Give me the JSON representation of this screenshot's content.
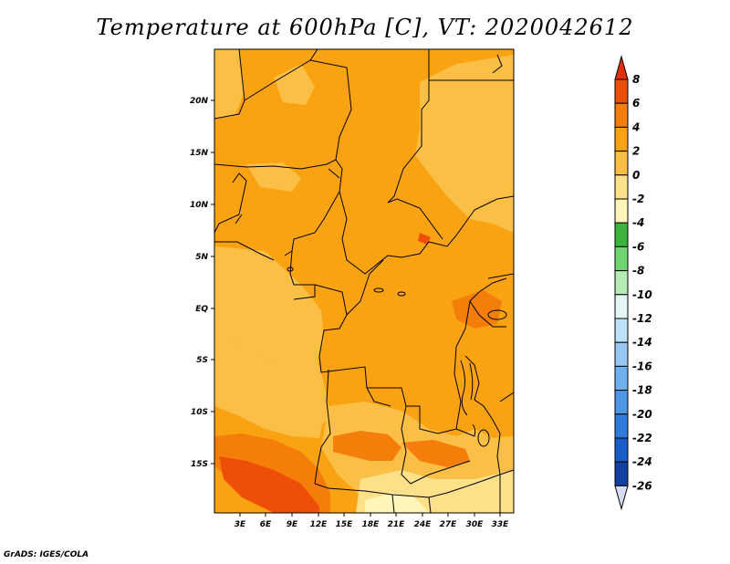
{
  "title": "Temperature at 600hPa [C], VT: 2020042612",
  "credit": "GrADS: IGES/COLA",
  "colors": {
    "lt_minus2": "#fff5b8",
    "m2_to_0": "#fde08a",
    "z_to_2": "#fbbf45",
    "two_to_4": "#f9a313",
    "four_to_6": "#f57d0a",
    "six_to_8": "#ee4f08",
    "gt_8": "#e0310c"
  },
  "map": {
    "lat_labels": [
      "20N",
      "15N",
      "10N",
      "5N",
      "EQ",
      "5S",
      "10S",
      "15S"
    ],
    "lon_labels": [
      "3E",
      "6E",
      "9E",
      "12E",
      "15E",
      "18E",
      "21E",
      "24E",
      "27E",
      "30E",
      "33E"
    ],
    "lat_range": [
      -20,
      24.5
    ],
    "lon_range": [
      0.5,
      35
    ]
  },
  "colorbar": {
    "labels": [
      "8",
      "6",
      "4",
      "2",
      "0",
      "-2",
      "-4",
      "-6",
      "-8",
      "-10",
      "-12",
      "-14",
      "-16",
      "-18",
      "-20",
      "-22",
      "-24",
      "-26"
    ],
    "colors": [
      "#e0310c",
      "#ee4f08",
      "#f57d0a",
      "#f9a313",
      "#fbbf45",
      "#fde08a",
      "#fff5b8",
      "#3cb33c",
      "#6fd66f",
      "#b4ecb4",
      "#e4f5f6",
      "#bde0fb",
      "#96c8f3",
      "#6fb0ef",
      "#4d96e8",
      "#2f7bdb",
      "#1a5dc8",
      "#1040a0",
      "#0b1d72",
      "#d8dcf3"
    ]
  }
}
